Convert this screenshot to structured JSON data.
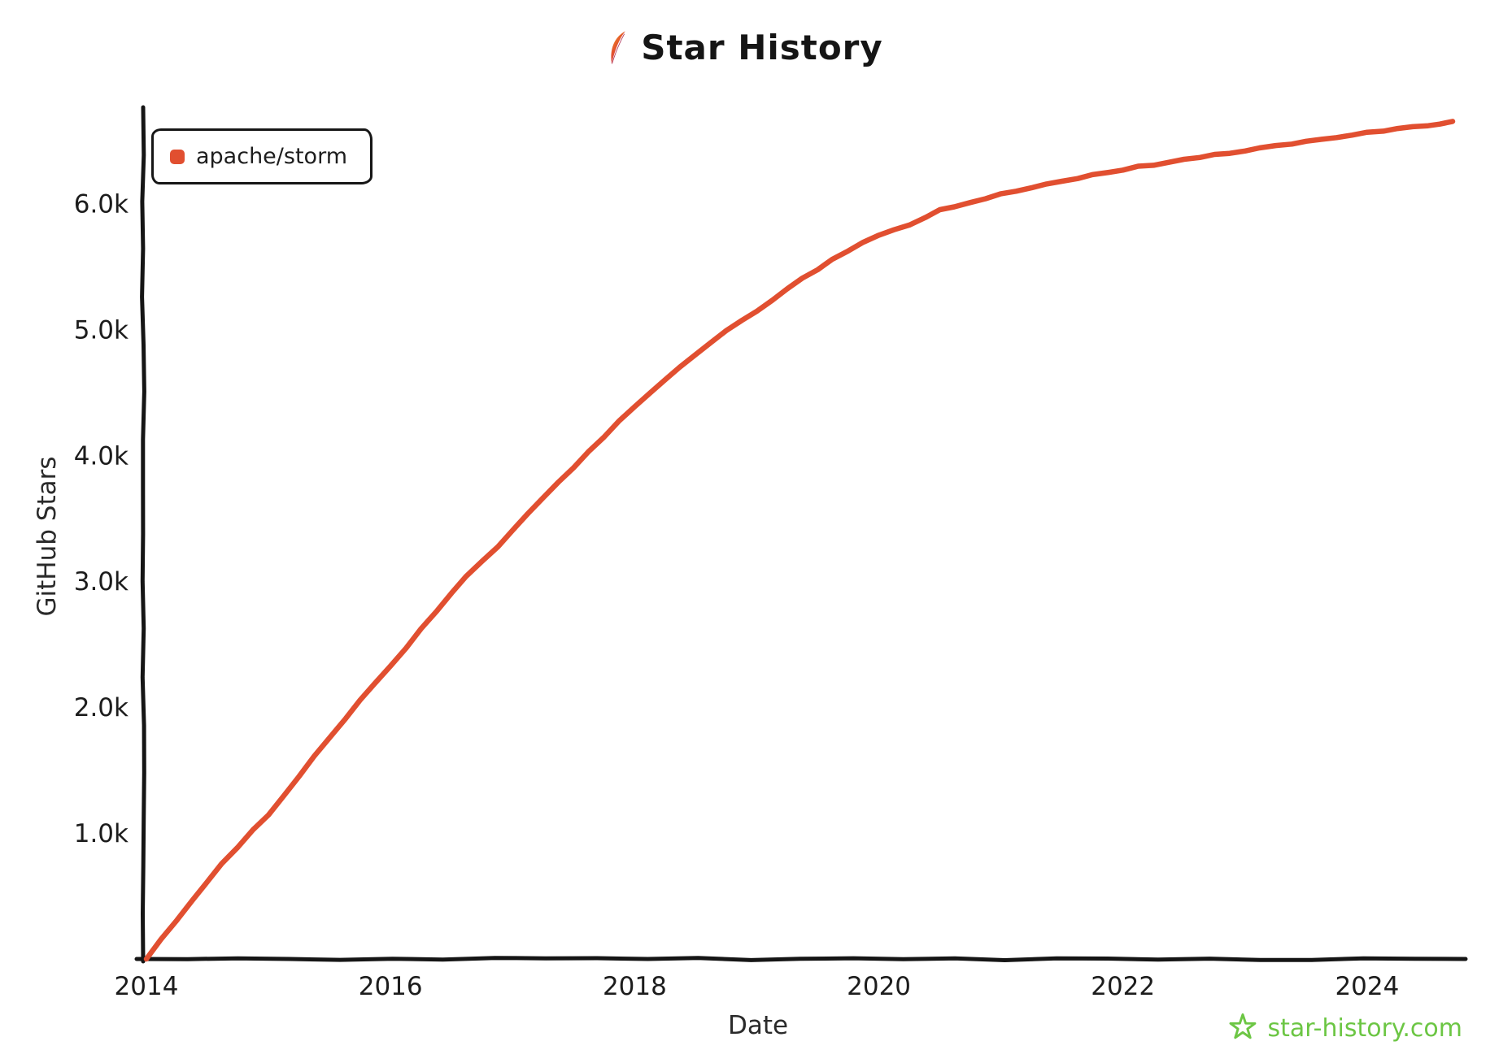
{
  "title": {
    "text": "Star History"
  },
  "legend": {
    "items": [
      {
        "label": "apache/storm",
        "color": "#e14f30"
      }
    ]
  },
  "footer": {
    "brand": "star-history.com",
    "color": "#6cc644"
  },
  "chart_data": {
    "type": "line",
    "title": "Star History",
    "xlabel": "Date",
    "ylabel": "GitHub Stars",
    "grid": false,
    "legend_position": "top-left",
    "xlim": [
      2014,
      2024.7
    ],
    "ylim": [
      0,
      6700
    ],
    "x_tick_values": [
      2014,
      2016,
      2018,
      2020,
      2022,
      2024
    ],
    "x_tick_labels": [
      "2014",
      "2016",
      "2018",
      "2020",
      "2022",
      "2024"
    ],
    "y_tick_values": [
      1000,
      2000,
      3000,
      4000,
      5000,
      6000
    ],
    "y_tick_labels": [
      "1.0k",
      "2.0k",
      "3.0k",
      "4.0k",
      "5.0k",
      "6.0k"
    ],
    "series": [
      {
        "name": "apache/storm",
        "color": "#e14f30",
        "x": [
          2014.0,
          2014.25,
          2014.5,
          2014.75,
          2015.0,
          2015.25,
          2015.5,
          2015.75,
          2016.0,
          2016.25,
          2016.5,
          2016.75,
          2017.0,
          2017.25,
          2017.5,
          2017.75,
          2018.0,
          2018.25,
          2018.5,
          2018.75,
          2019.0,
          2019.25,
          2019.5,
          2019.75,
          2020.0,
          2020.25,
          2020.5,
          2020.75,
          2021.0,
          2021.25,
          2021.5,
          2021.75,
          2022.0,
          2022.25,
          2022.5,
          2022.75,
          2023.0,
          2023.25,
          2023.5,
          2023.75,
          2024.0,
          2024.25,
          2024.5,
          2024.7
        ],
        "y": [
          0,
          310,
          620,
          890,
          1150,
          1450,
          1760,
          2050,
          2330,
          2620,
          2900,
          3160,
          3400,
          3660,
          3900,
          4150,
          4380,
          4600,
          4800,
          4990,
          5150,
          5320,
          5480,
          5620,
          5750,
          5830,
          5950,
          6010,
          6080,
          6130,
          6180,
          6230,
          6270,
          6310,
          6350,
          6390,
          6420,
          6460,
          6490,
          6520,
          6560,
          6590,
          6620,
          6650
        ]
      }
    ]
  }
}
